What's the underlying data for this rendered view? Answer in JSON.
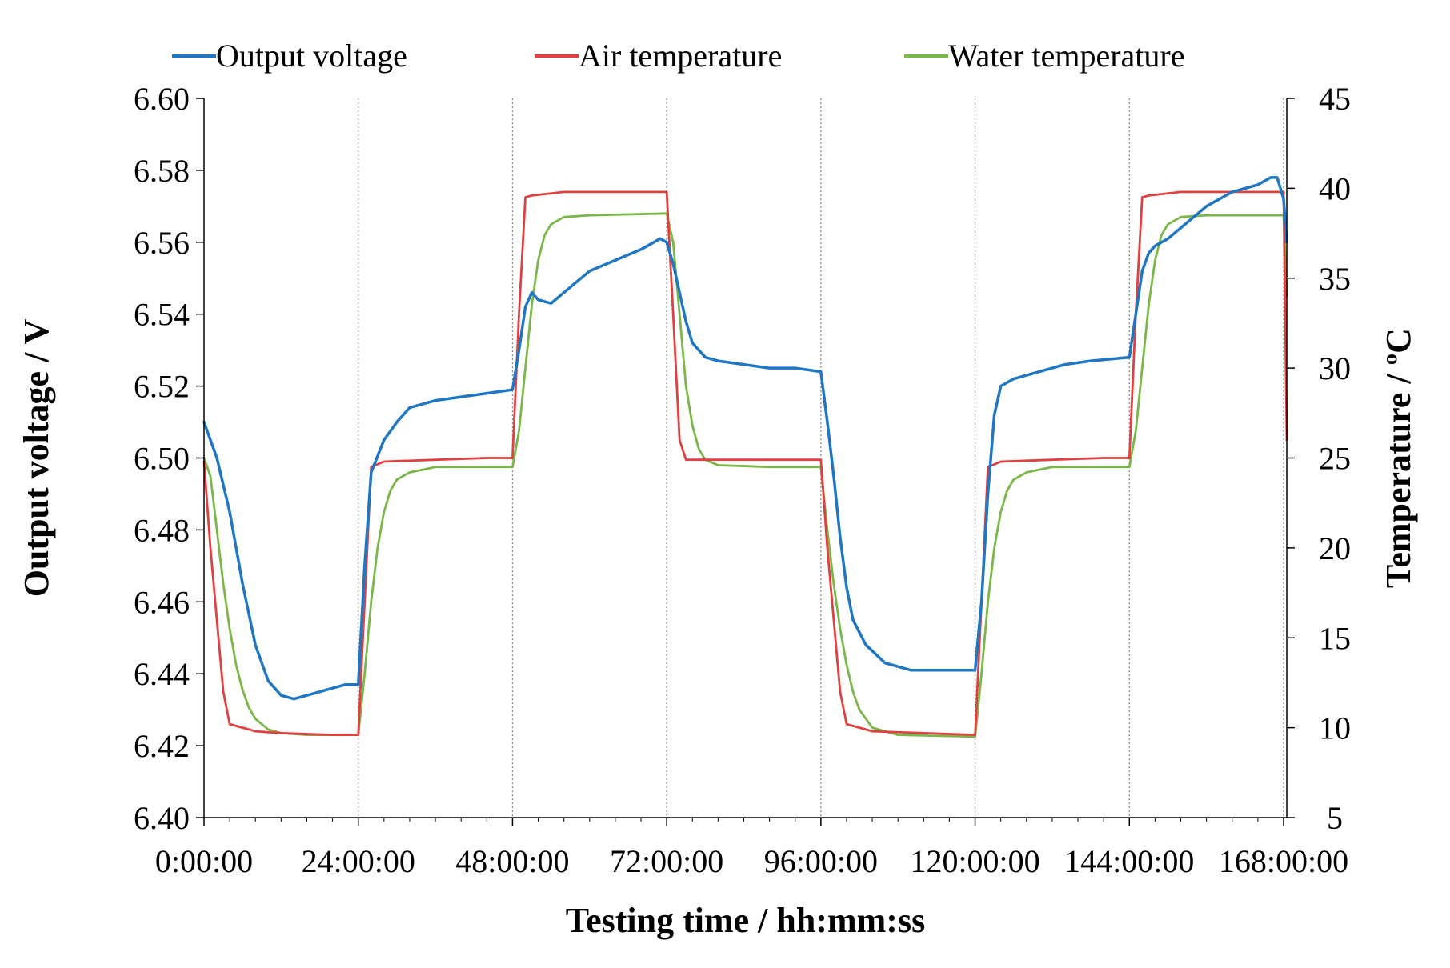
{
  "chart_data": {
    "type": "line",
    "title": "",
    "xlabel": "Testing time / hh:mm:ss",
    "ylabel": "Output voltage / V",
    "y2label": "Temperature / ºC",
    "xlim": [
      0,
      168.5
    ],
    "ylim": [
      6.4,
      6.6
    ],
    "y2lim": [
      5,
      45
    ],
    "grid": "vertical dotted lines at x ticks",
    "legend_position": "top",
    "x_ticks": [
      0,
      24,
      48,
      72,
      96,
      120,
      144,
      168
    ],
    "x_tick_labels": [
      "0:00:00",
      "24:00:00",
      "48:00:00",
      "72:00:00",
      "96:00:00",
      "120:00:00",
      "144:00:00",
      "168:00:00"
    ],
    "y_ticks": [
      6.4,
      6.42,
      6.44,
      6.46,
      6.48,
      6.5,
      6.52,
      6.54,
      6.56,
      6.58,
      6.6
    ],
    "y_tick_labels": [
      "6.40",
      "6.42",
      "6.44",
      "6.46",
      "6.48",
      "6.50",
      "6.52",
      "6.54",
      "6.56",
      "6.58",
      "6.60"
    ],
    "y2_ticks": [
      5,
      10,
      15,
      20,
      25,
      30,
      35,
      40,
      45
    ],
    "y2_tick_labels": [
      "5",
      "10",
      "15",
      "20",
      "25",
      "30",
      "35",
      "40",
      "45"
    ],
    "series": [
      {
        "name": "Output voltage",
        "axis": "left",
        "color": "#1f77c4",
        "points": [
          [
            0,
            6.51
          ],
          [
            2,
            6.5
          ],
          [
            4,
            6.485
          ],
          [
            6,
            6.465
          ],
          [
            8,
            6.448
          ],
          [
            10,
            6.438
          ],
          [
            12,
            6.434
          ],
          [
            14,
            6.433
          ],
          [
            16,
            6.434
          ],
          [
            18,
            6.435
          ],
          [
            20,
            6.436
          ],
          [
            22,
            6.437
          ],
          [
            24,
            6.437
          ],
          [
            25,
            6.47
          ],
          [
            26,
            6.496
          ],
          [
            28,
            6.505
          ],
          [
            30,
            6.51
          ],
          [
            32,
            6.514
          ],
          [
            36,
            6.516
          ],
          [
            40,
            6.517
          ],
          [
            44,
            6.518
          ],
          [
            48,
            6.519
          ],
          [
            49,
            6.53
          ],
          [
            50,
            6.542
          ],
          [
            51,
            6.546
          ],
          [
            52,
            6.544
          ],
          [
            54,
            6.543
          ],
          [
            56,
            6.546
          ],
          [
            58,
            6.549
          ],
          [
            60,
            6.552
          ],
          [
            64,
            6.555
          ],
          [
            68,
            6.558
          ],
          [
            71,
            6.561
          ],
          [
            72,
            6.56
          ],
          [
            73,
            6.554
          ],
          [
            74,
            6.546
          ],
          [
            75,
            6.538
          ],
          [
            76,
            6.532
          ],
          [
            78,
            6.528
          ],
          [
            80,
            6.527
          ],
          [
            84,
            6.526
          ],
          [
            88,
            6.525
          ],
          [
            92,
            6.525
          ],
          [
            96,
            6.524
          ],
          [
            97,
            6.51
          ],
          [
            98,
            6.495
          ],
          [
            99,
            6.478
          ],
          [
            100,
            6.464
          ],
          [
            101,
            6.455
          ],
          [
            103,
            6.448
          ],
          [
            106,
            6.443
          ],
          [
            110,
            6.441
          ],
          [
            114,
            6.441
          ],
          [
            118,
            6.441
          ],
          [
            120,
            6.441
          ],
          [
            121,
            6.46
          ],
          [
            122,
            6.49
          ],
          [
            123,
            6.512
          ],
          [
            124,
            6.52
          ],
          [
            126,
            6.522
          ],
          [
            130,
            6.524
          ],
          [
            134,
            6.526
          ],
          [
            138,
            6.527
          ],
          [
            144,
            6.528
          ],
          [
            145,
            6.54
          ],
          [
            146,
            6.552
          ],
          [
            147,
            6.557
          ],
          [
            148,
            6.559
          ],
          [
            150,
            6.561
          ],
          [
            152,
            6.564
          ],
          [
            154,
            6.567
          ],
          [
            156,
            6.57
          ],
          [
            158,
            6.572
          ],
          [
            160,
            6.574
          ],
          [
            162,
            6.575
          ],
          [
            164,
            6.576
          ],
          [
            166,
            6.578
          ],
          [
            167,
            6.578
          ],
          [
            168,
            6.572
          ],
          [
            168.5,
            6.56
          ]
        ]
      },
      {
        "name": "Air temperature",
        "axis": "right",
        "color": "#e04040",
        "points": [
          [
            0,
            24.8
          ],
          [
            1,
            20
          ],
          [
            3,
            12
          ],
          [
            4,
            10.2
          ],
          [
            8,
            9.8
          ],
          [
            12,
            9.7
          ],
          [
            20,
            9.6
          ],
          [
            24,
            9.6
          ],
          [
            25,
            17
          ],
          [
            26,
            24.5
          ],
          [
            28,
            24.8
          ],
          [
            36,
            24.9
          ],
          [
            44,
            25
          ],
          [
            48,
            25
          ],
          [
            49,
            33
          ],
          [
            50,
            39.5
          ],
          [
            51,
            39.6
          ],
          [
            56,
            39.8
          ],
          [
            64,
            39.8
          ],
          [
            72,
            39.8
          ],
          [
            73,
            33
          ],
          [
            74,
            26
          ],
          [
            75,
            24.9
          ],
          [
            80,
            24.9
          ],
          [
            88,
            24.9
          ],
          [
            96,
            24.9
          ],
          [
            97,
            20
          ],
          [
            99,
            12
          ],
          [
            100,
            10.2
          ],
          [
            104,
            9.8
          ],
          [
            112,
            9.7
          ],
          [
            120,
            9.6
          ],
          [
            121,
            17
          ],
          [
            122,
            24.5
          ],
          [
            124,
            24.8
          ],
          [
            132,
            24.9
          ],
          [
            140,
            25
          ],
          [
            144,
            25
          ],
          [
            145,
            33
          ],
          [
            146,
            39.5
          ],
          [
            147,
            39.6
          ],
          [
            152,
            39.8
          ],
          [
            160,
            39.8
          ],
          [
            168,
            39.8
          ],
          [
            168.5,
            26
          ]
        ]
      },
      {
        "name": "Water temperature",
        "axis": "right",
        "color": "#7ab648",
        "points": [
          [
            0,
            25
          ],
          [
            1,
            24
          ],
          [
            2,
            21
          ],
          [
            3,
            18
          ],
          [
            4,
            15.5
          ],
          [
            5,
            13.5
          ],
          [
            6,
            12.1
          ],
          [
            7,
            11.1
          ],
          [
            8,
            10.5
          ],
          [
            10,
            9.9
          ],
          [
            12,
            9.7
          ],
          [
            16,
            9.6
          ],
          [
            24,
            9.6
          ],
          [
            25,
            13
          ],
          [
            26,
            17
          ],
          [
            27,
            20
          ],
          [
            28,
            22
          ],
          [
            29,
            23.2
          ],
          [
            30,
            23.8
          ],
          [
            32,
            24.2
          ],
          [
            36,
            24.5
          ],
          [
            48,
            24.5
          ],
          [
            49,
            26.5
          ],
          [
            50,
            30
          ],
          [
            51,
            33.5
          ],
          [
            52,
            36
          ],
          [
            53,
            37.4
          ],
          [
            54,
            38
          ],
          [
            56,
            38.4
          ],
          [
            60,
            38.5
          ],
          [
            72,
            38.6
          ],
          [
            73,
            37
          ],
          [
            74,
            33
          ],
          [
            75,
            29
          ],
          [
            76,
            26.8
          ],
          [
            77,
            25.5
          ],
          [
            78,
            24.9
          ],
          [
            80,
            24.6
          ],
          [
            88,
            24.5
          ],
          [
            96,
            24.5
          ],
          [
            97,
            21
          ],
          [
            98,
            18
          ],
          [
            99,
            15.5
          ],
          [
            100,
            13.5
          ],
          [
            101,
            12
          ],
          [
            102,
            11
          ],
          [
            104,
            10
          ],
          [
            108,
            9.6
          ],
          [
            120,
            9.5
          ],
          [
            121,
            13
          ],
          [
            122,
            17
          ],
          [
            123,
            20
          ],
          [
            124,
            22
          ],
          [
            125,
            23.2
          ],
          [
            126,
            23.8
          ],
          [
            128,
            24.2
          ],
          [
            132,
            24.5
          ],
          [
            144,
            24.5
          ],
          [
            145,
            26.5
          ],
          [
            146,
            30
          ],
          [
            147,
            33.5
          ],
          [
            148,
            36
          ],
          [
            149,
            37.4
          ],
          [
            150,
            38
          ],
          [
            152,
            38.4
          ],
          [
            156,
            38.5
          ],
          [
            168,
            38.5
          ],
          [
            168.5,
            34
          ]
        ]
      }
    ]
  }
}
